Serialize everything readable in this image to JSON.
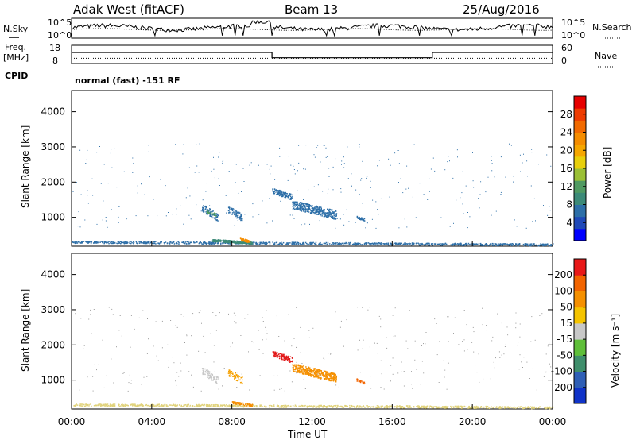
{
  "header": {
    "station": "Adak West (fitACF)",
    "beam": "Beam 13",
    "date": "25/Aug/2016"
  },
  "noise_panel": {
    "left_label": "N.Sky",
    "right_label": "N.Search",
    "left_ticks": [
      "10^5",
      "10^0"
    ],
    "right_ticks": [
      "10^5",
      "10^0"
    ]
  },
  "freq_panel": {
    "left_label_1": "Freq.",
    "left_label_2": "[MHz]",
    "left_ticks": [
      "18",
      "8"
    ],
    "right_label": "Nave",
    "right_ticks": [
      "60",
      "0"
    ],
    "cpid_label": "CPID",
    "cpid_text": "normal (fast) -151 RF",
    "freq_segments": [
      {
        "t0": 0,
        "t1": 10,
        "value": 14.2
      },
      {
        "t0": 10,
        "t1": 18,
        "value": 11.0
      },
      {
        "t0": 18,
        "t1": 24,
        "value": 14.2
      }
    ],
    "nave_value": 16
  },
  "chart_data": [
    {
      "type": "heatmap",
      "name": "power",
      "ylabel": "Slant Range [km]",
      "xlabel": "",
      "x_tick_labels": [],
      "y_ticks": [
        1000,
        2000,
        3000,
        4000
      ],
      "xlim": [
        0,
        24
      ],
      "ylim": [
        180,
        4600
      ],
      "colorbar_label": "Power [dB]",
      "colorbar_ticks": [
        4,
        8,
        12,
        16,
        20,
        24,
        28
      ],
      "colorbar_range": [
        0,
        32
      ],
      "colorbar_colors": [
        "#0000ff",
        "#1f49b8",
        "#2d6fa8",
        "#3c8a78",
        "#509a62",
        "#9bc036",
        "#e8d00c",
        "#f6a700",
        "#f58d00",
        "#f26a00",
        "#ee3b00",
        "#e60000"
      ],
      "echo_regions": [
        {
          "t0": 0.0,
          "t1": 24.0,
          "r0": 200,
          "r1": 330,
          "value": 6,
          "n": 900
        },
        {
          "t0": 7.0,
          "t1": 9.0,
          "r0": 250,
          "r1": 380,
          "value": 9,
          "n": 260
        },
        {
          "t0": 8.4,
          "t1": 8.9,
          "r0": 280,
          "r1": 420,
          "value": 22,
          "n": 60
        },
        {
          "t0": 6.5,
          "t1": 7.3,
          "r0": 900,
          "r1": 1350,
          "value": 7,
          "n": 80
        },
        {
          "t0": 6.7,
          "t1": 7.2,
          "r0": 1050,
          "r1": 1200,
          "value": 13,
          "n": 25
        },
        {
          "t0": 7.8,
          "t1": 8.5,
          "r0": 900,
          "r1": 1300,
          "value": 7,
          "n": 70
        },
        {
          "t0": 10.0,
          "t1": 11.0,
          "r0": 1500,
          "r1": 1820,
          "value": 7,
          "n": 110
        },
        {
          "t0": 11.0,
          "t1": 13.2,
          "r0": 950,
          "r1": 1450,
          "value": 7,
          "n": 350
        },
        {
          "t0": 14.2,
          "t1": 14.6,
          "r0": 900,
          "r1": 1050,
          "value": 6,
          "n": 25
        }
      ],
      "scatter_points": {
        "n": 320,
        "r0": 700,
        "r1": 3100,
        "value": 7
      }
    },
    {
      "type": "heatmap",
      "name": "velocity",
      "ylabel": "Slant Range [km]",
      "xlabel": "Time UT",
      "x_tick_labels": [
        "00:00",
        "04:00",
        "08:00",
        "12:00",
        "16:00",
        "20:00",
        "00:00"
      ],
      "y_ticks": [
        1000,
        2000,
        3000,
        4000
      ],
      "xlim": [
        0,
        24
      ],
      "ylim": [
        180,
        4600
      ],
      "colorbar_label": "Velocity [m s⁻¹]",
      "colorbar_ticks": [
        "200",
        "100",
        "50",
        "15",
        "-15",
        "-50",
        "-100",
        "-200"
      ],
      "colorbar_colors": [
        "#1033c8",
        "#2f5fb6",
        "#3f8f6c",
        "#5fbf3a",
        "#c8c8c8",
        "#f5c400",
        "#f59000",
        "#f26400",
        "#e81818"
      ],
      "echo_regions": [
        {
          "t0": 0.0,
          "t1": 24.0,
          "r0": 200,
          "r1": 330,
          "color": "#e0d27a",
          "n": 900
        },
        {
          "t0": 8.0,
          "t1": 9.0,
          "r0": 260,
          "r1": 400,
          "color": "#f58d00",
          "n": 70
        },
        {
          "t0": 6.5,
          "t1": 7.3,
          "r0": 900,
          "r1": 1350,
          "color": "#c8c8c8",
          "n": 70
        },
        {
          "t0": 7.8,
          "t1": 8.5,
          "r0": 900,
          "r1": 1300,
          "color": "#f5a000",
          "n": 60
        },
        {
          "t0": 10.0,
          "t1": 11.0,
          "r0": 1500,
          "r1": 1820,
          "color": "#e21a1a",
          "n": 110
        },
        {
          "t0": 11.0,
          "t1": 13.2,
          "r0": 950,
          "r1": 1450,
          "color": "#f59000",
          "n": 350
        },
        {
          "t0": 14.2,
          "t1": 14.6,
          "r0": 900,
          "r1": 1050,
          "color": "#f26400",
          "n": 25
        }
      ],
      "scatter_points": {
        "n": 320,
        "r0": 700,
        "r1": 3100,
        "color": "#999999"
      }
    }
  ]
}
